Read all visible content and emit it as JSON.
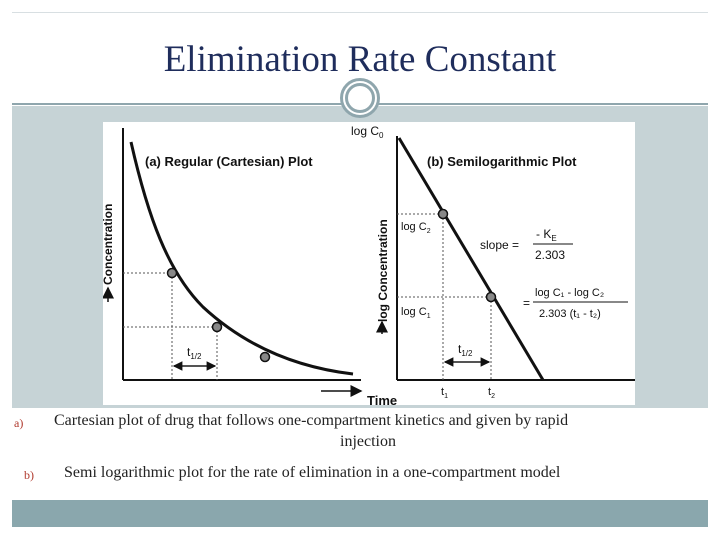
{
  "slide": {
    "title": "Elimination Rate Constant"
  },
  "figure": {
    "panel_a": {
      "label": "(a) Regular (Cartesian) Plot",
      "ylabel": "Concentration",
      "half_life": "t1/2",
      "half_life_main": "t",
      "half_life_sub": "1/2"
    },
    "panel_b": {
      "label": "(b) Semilogarithmic Plot",
      "ylabel": "log Concentration",
      "log_c0_main": "log C",
      "log_c0_sub": "0",
      "log_c2_main": "log C",
      "log_c2_sub": "2",
      "log_c1_main": "log C",
      "log_c1_sub": "1",
      "slope_label": "slope =",
      "slope_num_main": "- K",
      "slope_num_sub": "E",
      "slope_den": "2.303",
      "eq_sign": "=",
      "eq_num": "log C₁ - log C₂",
      "eq_den": "2.303 (t₁ - t₂)",
      "half_life_main": "t",
      "half_life_sub": "1/2",
      "t1_main": "t",
      "t1_sub": "1",
      "t2_main": "t",
      "t2_sub": "2"
    },
    "xlabel": "Time"
  },
  "bullets": [
    {
      "marker": "a)",
      "text_line1": "Cartesian plot of drug that follows  one-compartment kinetics and given by rapid",
      "text_line2": "injection"
    },
    {
      "marker": "b)",
      "text_line1": "Semi logarithmic  plot for the rate of elimination in a one-compartment model"
    }
  ],
  "colors": {
    "title": "#1f2d5c",
    "band": "#c6d3d6",
    "footer": "#8aa7ad",
    "marker": "#b03a2e"
  }
}
